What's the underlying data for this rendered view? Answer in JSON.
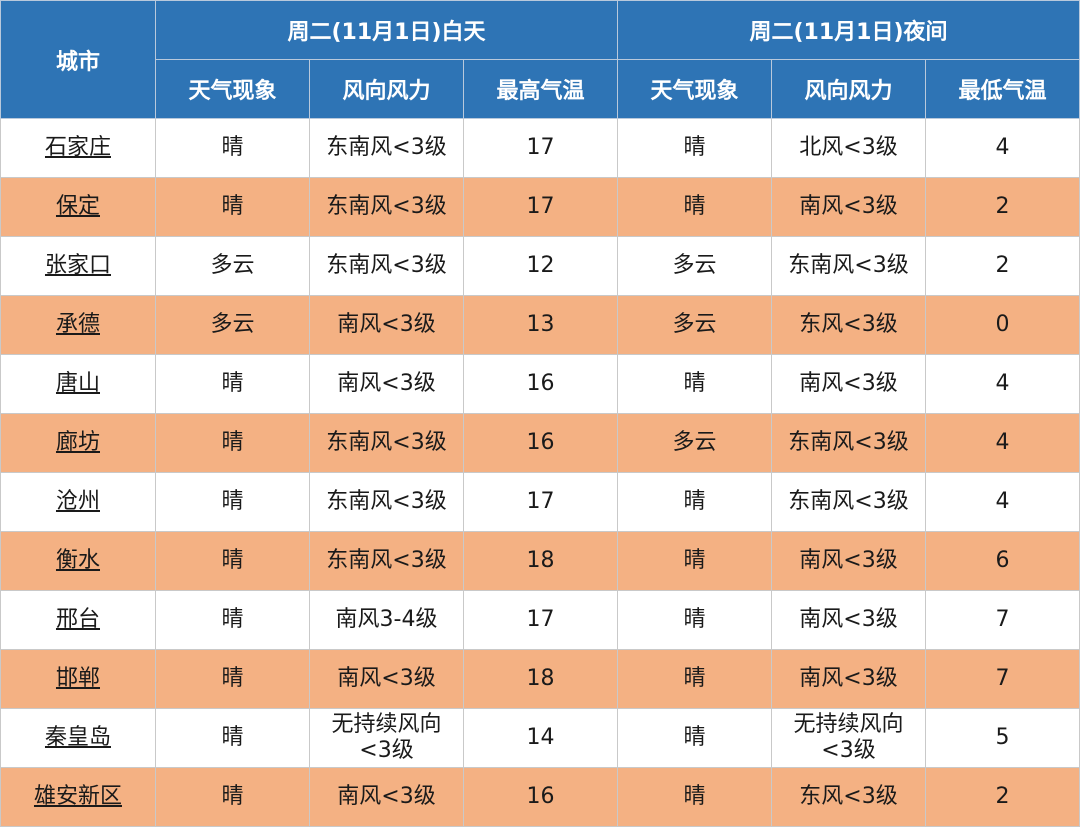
{
  "header": {
    "city": "城市",
    "day_group": "周二(11月1日)白天",
    "night_group": "周二(11月1日)夜间",
    "day_weather": "天气现象",
    "day_wind": "风向风力",
    "day_high": "最高气温",
    "night_weather": "天气现象",
    "night_wind": "风向风力",
    "night_low": "最低气温"
  },
  "rows": [
    {
      "city": "石家庄",
      "day_weather": "晴",
      "day_wind": [
        "东南风<3级"
      ],
      "high": "17",
      "night_weather": "晴",
      "night_wind": [
        "北风<3级"
      ],
      "low": "4"
    },
    {
      "city": "保定",
      "day_weather": "晴",
      "day_wind": [
        "东南风<3级"
      ],
      "high": "17",
      "night_weather": "晴",
      "night_wind": [
        "南风<3级"
      ],
      "low": "2"
    },
    {
      "city": "张家口",
      "day_weather": "多云",
      "day_wind": [
        "东南风<3级"
      ],
      "high": "12",
      "night_weather": "多云",
      "night_wind": [
        "东南风<3级"
      ],
      "low": "2"
    },
    {
      "city": "承德",
      "day_weather": "多云",
      "day_wind": [
        "南风<3级"
      ],
      "high": "13",
      "night_weather": "多云",
      "night_wind": [
        "东风<3级"
      ],
      "low": "0"
    },
    {
      "city": "唐山",
      "day_weather": "晴",
      "day_wind": [
        "南风<3级"
      ],
      "high": "16",
      "night_weather": "晴",
      "night_wind": [
        "南风<3级"
      ],
      "low": "4"
    },
    {
      "city": "廊坊",
      "day_weather": "晴",
      "day_wind": [
        "东南风<3级"
      ],
      "high": "16",
      "night_weather": "多云",
      "night_wind": [
        "东南风<3级"
      ],
      "low": "4"
    },
    {
      "city": "沧州",
      "day_weather": "晴",
      "day_wind": [
        "东南风<3级"
      ],
      "high": "17",
      "night_weather": "晴",
      "night_wind": [
        "东南风<3级"
      ],
      "low": "4"
    },
    {
      "city": "衡水",
      "day_weather": "晴",
      "day_wind": [
        "东南风<3级"
      ],
      "high": "18",
      "night_weather": "晴",
      "night_wind": [
        "南风<3级"
      ],
      "low": "6"
    },
    {
      "city": "邢台",
      "day_weather": "晴",
      "day_wind": [
        "南风3-4级"
      ],
      "high": "17",
      "night_weather": "晴",
      "night_wind": [
        "南风<3级"
      ],
      "low": "7"
    },
    {
      "city": "邯郸",
      "day_weather": "晴",
      "day_wind": [
        "南风<3级"
      ],
      "high": "18",
      "night_weather": "晴",
      "night_wind": [
        "南风<3级"
      ],
      "low": "7"
    },
    {
      "city": "秦皇岛",
      "day_weather": "晴",
      "day_wind": [
        "无持续风向",
        "<3级"
      ],
      "high": "14",
      "night_weather": "晴",
      "night_wind": [
        "无持续风向",
        "<3级"
      ],
      "low": "5"
    },
    {
      "city": "雄安新区",
      "day_weather": "晴",
      "day_wind": [
        "南风<3级"
      ],
      "high": "16",
      "night_weather": "晴",
      "night_wind": [
        "东风<3级"
      ],
      "low": "2"
    }
  ]
}
